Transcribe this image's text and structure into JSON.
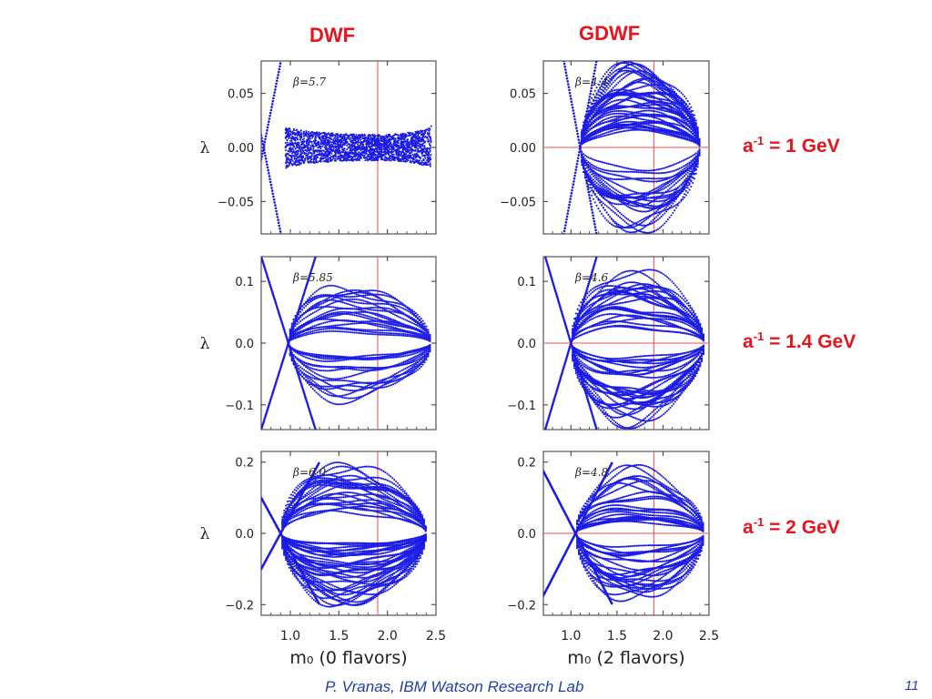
{
  "column_titles": [
    "DWF",
    "GDWF"
  ],
  "row_labels": [
    {
      "base": "a",
      "sup": "-1",
      "rest": " = 1 GeV"
    },
    {
      "base": "a",
      "sup": "-1",
      "rest": " = 1.4 GeV"
    },
    {
      "base": "a",
      "sup": "-1",
      "rest": " = 2 GeV"
    }
  ],
  "footer": {
    "credit": "P. Vranas, IBM Watson Research Lab",
    "page_number": "11"
  },
  "colors": {
    "points": "#1b1be6",
    "marker_line": "#e05050",
    "title_red": "#e8131b",
    "footer_blue": "#1f3fb0"
  },
  "chart_data": [
    {
      "type": "scatter",
      "panel": "DWF, a^-1 = 1 GeV",
      "annotation": "β=5.7",
      "ylabel": "λ",
      "xlabel": "",
      "xlim": [
        0.7,
        2.5
      ],
      "ylim": [
        -0.08,
        0.08
      ],
      "xticks": [
        "1.0",
        "1.5",
        "2.0",
        "2.5"
      ],
      "yticks": [
        "0.05",
        "0.00",
        "−0.05"
      ],
      "ytick_values": [
        0.05,
        0.0,
        -0.05
      ],
      "marker_x": 1.9,
      "show_hline": false,
      "cross_slope": 0.45,
      "cross_x0": 0.725,
      "band_start": 0.95,
      "band_end": 2.45,
      "band_edge": 0.02,
      "band_mid": 0.012,
      "band_mid_x": 1.9,
      "n_curves": 0
    },
    {
      "type": "scatter",
      "panel": "GDWF, a^-1 = 1 GeV",
      "annotation": "β=4.4",
      "ylabel": "",
      "xlabel": "",
      "xlim": [
        0.7,
        2.5
      ],
      "ylim": [
        -0.08,
        0.08
      ],
      "xticks": [
        "1.0",
        "1.5",
        "2.0",
        "2.5"
      ],
      "yticks": [
        "0.05",
        "0.00",
        "−0.05"
      ],
      "ytick_values": [
        0.05,
        0.0,
        -0.05
      ],
      "marker_x": 1.9,
      "show_hline": true,
      "cross_slope": 0.45,
      "cross_x0": 1.1,
      "band_start": 1.1,
      "band_end": 2.4,
      "band_edge": 0.0,
      "band_mid": 0.085,
      "band_mid_x": 1.7,
      "n_curves": 60
    },
    {
      "type": "scatter",
      "panel": "DWF, a^-1 = 1.4 GeV",
      "annotation": "β=5.85",
      "ylabel": "λ",
      "xlabel": "",
      "xlim": [
        0.7,
        2.5
      ],
      "ylim": [
        -0.14,
        0.14
      ],
      "xticks": [
        "1.0",
        "1.5",
        "2.0",
        "2.5"
      ],
      "yticks": [
        "0.1",
        "0.0",
        "−0.1"
      ],
      "ytick_values": [
        0.1,
        0.0,
        -0.1
      ],
      "marker_x": 1.9,
      "show_hline": false,
      "cross_slope": 0.5,
      "cross_x0": 0.98,
      "band_start": 0.98,
      "band_end": 2.45,
      "band_edge": 0.0,
      "band_mid": 0.1,
      "band_mid_x": 1.5,
      "n_curves": 35
    },
    {
      "type": "scatter",
      "panel": "GDWF, a^-1 = 1.4 GeV",
      "annotation": "β=4.6",
      "ylabel": "",
      "xlabel": "",
      "xlim": [
        0.7,
        2.5
      ],
      "ylim": [
        -0.14,
        0.14
      ],
      "xticks": [
        "1.0",
        "1.5",
        "2.0",
        "2.5"
      ],
      "yticks": [
        "0.1",
        "0.0",
        "−0.1"
      ],
      "ytick_values": [
        0.1,
        0.0,
        -0.1
      ],
      "marker_x": 1.9,
      "show_hline": true,
      "cross_slope": 0.5,
      "cross_x0": 1.0,
      "band_start": 1.0,
      "band_end": 2.45,
      "band_edge": 0.0,
      "band_mid": 0.14,
      "band_mid_x": 1.6,
      "n_curves": 55
    },
    {
      "type": "scatter",
      "panel": "DWF, a^-1 = 2 GeV",
      "annotation": "β=6.0",
      "ylabel": "λ",
      "xlabel": "m₀  (0 flavors)",
      "xlim": [
        0.7,
        2.5
      ],
      "ylim": [
        -0.23,
        0.23
      ],
      "xticks": [
        "1.0",
        "1.5",
        "2.0",
        "2.5"
      ],
      "yticks": [
        "0.2",
        "0.0",
        "−0.2"
      ],
      "ytick_values": [
        0.2,
        0.0,
        -0.2
      ],
      "marker_x": 1.9,
      "show_hline": false,
      "cross_slope": 0.5,
      "cross_x0": 0.9,
      "band_start": 0.9,
      "band_end": 2.4,
      "band_edge": 0.0,
      "band_mid": 0.22,
      "band_mid_x": 1.5,
      "n_curves": 60
    },
    {
      "type": "scatter",
      "panel": "GDWF, a^-1 = 2 GeV",
      "annotation": "β=4.8",
      "ylabel": "",
      "xlabel": "m₀  (2 flavors)",
      "xlim": [
        0.7,
        2.5
      ],
      "ylim": [
        -0.23,
        0.23
      ],
      "xticks": [
        "1.0",
        "1.5",
        "2.0",
        "2.5"
      ],
      "yticks": [
        "0.2",
        "0.0",
        "−0.2"
      ],
      "ytick_values": [
        0.2,
        0.0,
        -0.2
      ],
      "marker_x": 1.9,
      "show_hline": true,
      "cross_slope": 0.5,
      "cross_x0": 1.05,
      "band_start": 1.05,
      "band_end": 2.45,
      "band_edge": 0.0,
      "band_mid": 0.21,
      "band_mid_x": 1.65,
      "n_curves": 45
    }
  ]
}
